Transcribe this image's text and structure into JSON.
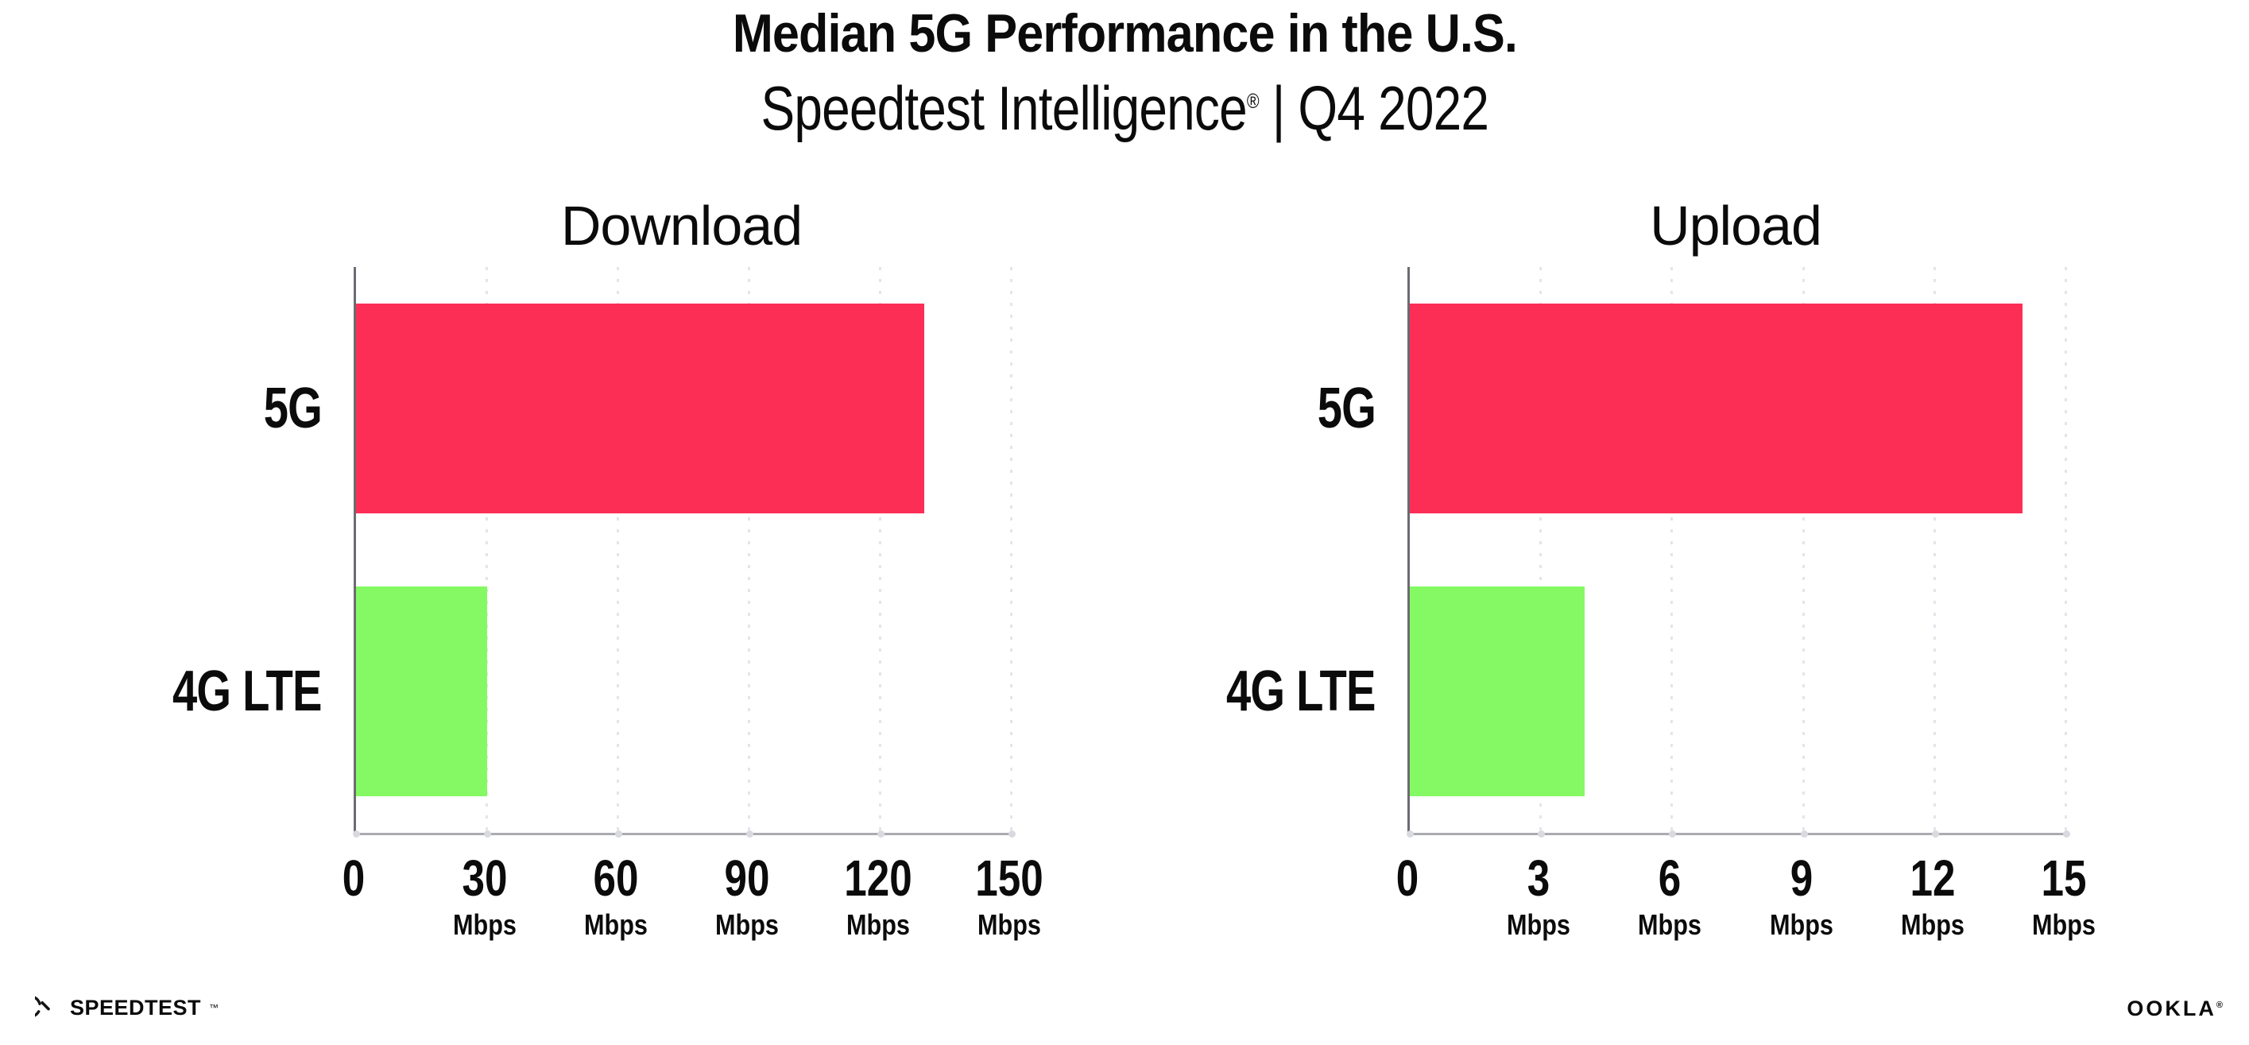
{
  "header": {
    "title": "Median 5G Performance in the U.S.",
    "subtitle": {
      "brand": "Speedtest Intelligence",
      "reg": "®",
      "rest": " | Q4 2022"
    }
  },
  "chart_data": [
    {
      "type": "bar",
      "orientation": "horizontal",
      "title": "Download",
      "categories": [
        "5G",
        "4G LTE"
      ],
      "values": [
        130,
        30
      ],
      "unit": "Mbps",
      "xlim": [
        0,
        150
      ],
      "ticks": [
        0,
        30,
        60,
        90,
        120,
        150
      ],
      "tick_unit_label": "Mbps",
      "bar_colors": [
        "#FD2E56",
        "#84F963"
      ],
      "grid": "dotted-vertical",
      "legend": "none"
    },
    {
      "type": "bar",
      "orientation": "horizontal",
      "title": "Upload",
      "categories": [
        "5G",
        "4G LTE"
      ],
      "values": [
        14,
        4
      ],
      "unit": "Mbps",
      "xlim": [
        0,
        15
      ],
      "ticks": [
        0,
        3,
        6,
        9,
        12,
        15
      ],
      "tick_unit_label": "Mbps",
      "bar_colors": [
        "#FD2E56",
        "#84F963"
      ],
      "grid": "dotted-vertical",
      "legend": "none"
    }
  ],
  "footer": {
    "speedtest": {
      "label": "SPEEDTEST",
      "mark": "™"
    },
    "ookla": {
      "label": "OOKLA",
      "mark": "®"
    }
  }
}
